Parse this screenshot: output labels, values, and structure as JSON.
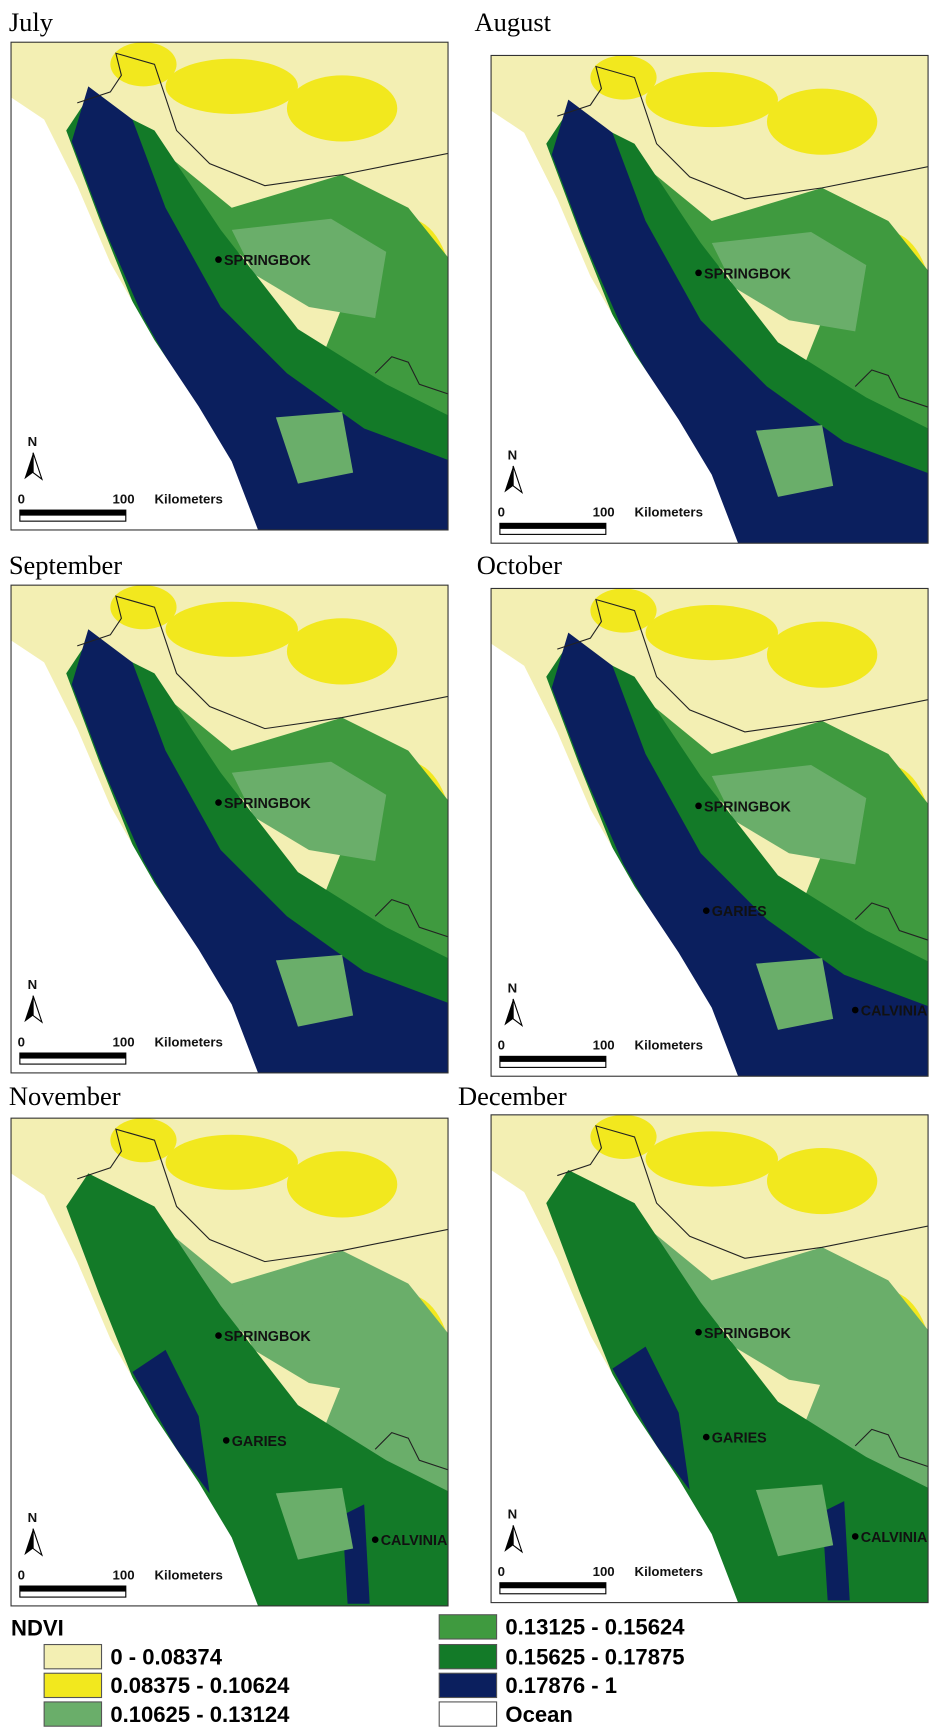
{
  "panels": [
    {
      "title": "July",
      "places": [
        "SPRINGBOK"
      ]
    },
    {
      "title": "August",
      "places": [
        "SPRINGBOK"
      ]
    },
    {
      "title": "September",
      "places": [
        "SPRINGBOK"
      ]
    },
    {
      "title": "October",
      "places": [
        "SPRINGBOK",
        "GARIES",
        "CALVINIA"
      ]
    },
    {
      "title": "November",
      "places": [
        "SPRINGBOK",
        "GARIES",
        "CALVINIA"
      ]
    },
    {
      "title": "December",
      "places": [
        "SPRINGBOK",
        "GARIES",
        "CALVINIA"
      ]
    }
  ],
  "scale_bar": {
    "start": "0",
    "end": "100",
    "unit": "Kilometers",
    "north": "N"
  },
  "legend": {
    "title": "NDVI",
    "items": [
      {
        "label": "0 - 0.08374",
        "color": "#f3efb3"
      },
      {
        "label": "0.08375 - 0.10624",
        "color": "#f2e81e"
      },
      {
        "label": "0.10625 - 0.13124",
        "color": "#6aae6a"
      },
      {
        "label": "0.13125 - 0.15624",
        "color": "#3f9a3f"
      },
      {
        "label": "0.15625 - 0.17875",
        "color": "#137a28"
      },
      {
        "label": "0.17876 - 1",
        "color": "#0b1f5e"
      },
      {
        "label": "Ocean",
        "color": "#ffffff"
      }
    ]
  }
}
